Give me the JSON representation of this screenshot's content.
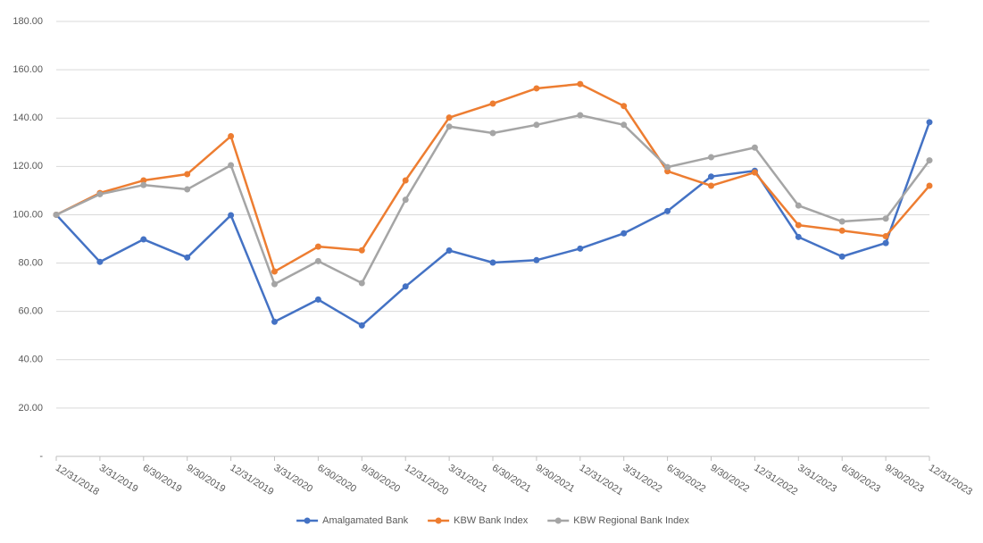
{
  "chart_data": {
    "type": "line",
    "categories": [
      "12/31/2018",
      "3/31/2019",
      "6/30/2019",
      "9/30/2019",
      "12/31/2019",
      "3/31/2020",
      "6/30/2020",
      "9/30/2020",
      "12/31/2020",
      "3/31/2021",
      "6/30/2021",
      "9/30/2021",
      "12/31/2021",
      "3/31/2022",
      "6/30/2022",
      "9/30/2022",
      "12/31/2022",
      "3/31/2023",
      "6/30/2023",
      "9/30/2023",
      "12/31/2023"
    ],
    "series": [
      {
        "name": "Amalgamated Bank",
        "color": "#4472c4",
        "values": [
          100,
          80.5,
          89.8,
          82.3,
          99.8,
          55.7,
          64.9,
          54.2,
          70.3,
          85.2,
          80.2,
          81.2,
          86,
          92.3,
          101.5,
          115.8,
          118.2,
          90.8,
          82.7,
          88.3,
          138.3
        ]
      },
      {
        "name": "KBW Bank Index",
        "color": "#ed7d31",
        "values": [
          100,
          109,
          114.2,
          116.8,
          132.5,
          76.5,
          86.8,
          85.3,
          114.2,
          140.2,
          146,
          152.3,
          154.1,
          145,
          118,
          112,
          117.5,
          95.7,
          93.4,
          91.1,
          112
        ]
      },
      {
        "name": "KBW Regional Bank Index",
        "color": "#a5a5a5",
        "values": [
          100,
          108.5,
          112.3,
          110.5,
          120.5,
          71.3,
          80.8,
          71.7,
          106.2,
          136.5,
          133.8,
          137.2,
          141.2,
          137.2,
          119.7,
          123.8,
          127.8,
          103.8,
          97.2,
          98.4,
          122.5
        ]
      }
    ],
    "ylim": [
      0,
      180
    ],
    "yticks": [
      {
        "value": 0,
        "label": "-"
      },
      {
        "value": 20,
        "label": "20.00"
      },
      {
        "value": 40,
        "label": "40.00"
      },
      {
        "value": 60,
        "label": "60.00"
      },
      {
        "value": 80,
        "label": "80.00"
      },
      {
        "value": 100,
        "label": "100.00"
      },
      {
        "value": 120,
        "label": "120.00"
      },
      {
        "value": 140,
        "label": "140.00"
      },
      {
        "value": 160,
        "label": "160.00"
      },
      {
        "value": 180,
        "label": "180.00"
      }
    ],
    "grid": true,
    "legend": "bottom"
  }
}
